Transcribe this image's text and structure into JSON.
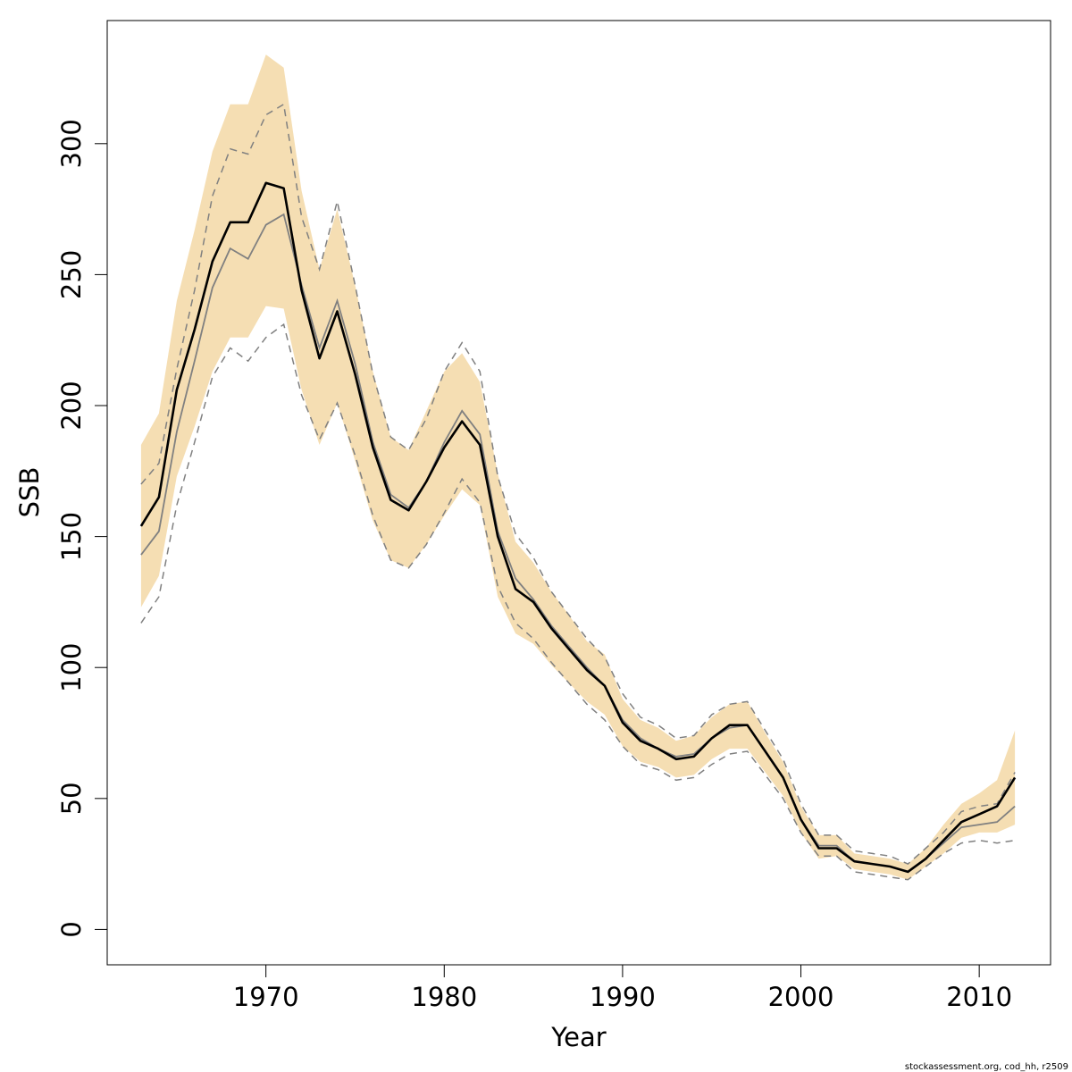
{
  "chart_data": {
    "type": "line",
    "xlabel": "Year",
    "ylabel": "SSB",
    "footer": "stockassessment.org, cod_hh, r2509",
    "xlim": [
      1961.1,
      2014
    ],
    "ylim": [
      -13.5,
      347
    ],
    "x_ticks": [
      1970,
      1980,
      1990,
      2000,
      2010
    ],
    "y_ticks": [
      0,
      50,
      100,
      150,
      200,
      250,
      300
    ],
    "colors": {
      "band": "#f5deb3",
      "estimate": "#000000",
      "reference": "#808080",
      "reference_ci": "#808080"
    },
    "x": [
      1963,
      1964,
      1965,
      1966,
      1967,
      1968,
      1969,
      1970,
      1971,
      1972,
      1973,
      1974,
      1975,
      1976,
      1977,
      1978,
      1979,
      1980,
      1981,
      1982,
      1983,
      1984,
      1985,
      1986,
      1987,
      1988,
      1989,
      1990,
      1991,
      1992,
      1993,
      1994,
      1995,
      1996,
      1997,
      1998,
      1999,
      2000,
      2001,
      2002,
      2003,
      2004,
      2005,
      2006,
      2007,
      2008,
      2009,
      2010,
      2011,
      2012
    ],
    "series": [
      {
        "role": "estimate",
        "values": [
          154,
          165,
          206,
          229,
          255,
          270,
          270,
          285,
          283,
          244,
          218,
          236,
          212,
          184,
          164,
          160,
          171,
          184,
          194,
          185,
          150,
          130,
          125,
          115,
          107,
          99,
          93,
          79,
          72,
          69,
          65,
          66,
          73,
          78,
          78,
          68,
          58,
          42,
          31,
          31,
          26,
          25,
          24,
          22,
          27,
          34,
          41,
          44,
          47,
          58
        ]
      },
      {
        "role": "band_upper",
        "values": [
          185,
          197,
          240,
          267,
          297,
          315,
          315,
          334,
          329,
          282,
          252,
          275,
          246,
          213,
          188,
          183,
          198,
          213,
          220,
          209,
          174,
          148,
          140,
          129,
          120,
          110,
          105,
          88,
          80,
          77,
          72,
          74,
          81,
          86,
          87,
          75,
          64,
          47,
          36,
          36,
          29,
          28,
          27,
          25,
          31,
          40,
          48,
          52,
          57,
          76
        ]
      },
      {
        "role": "band_lower",
        "values": [
          123,
          135,
          173,
          192,
          213,
          226,
          226,
          238,
          237,
          206,
          185,
          201,
          179,
          156,
          141,
          138,
          147,
          158,
          168,
          162,
          127,
          113,
          109,
          101,
          94,
          87,
          82,
          70,
          64,
          62,
          58,
          59,
          65,
          69,
          69,
          60,
          51,
          37,
          27,
          28,
          23,
          22,
          21,
          19,
          24,
          29,
          35,
          37,
          37,
          40
        ]
      },
      {
        "role": "reference",
        "values": [
          143,
          152,
          190,
          217,
          245,
          260,
          256,
          269,
          273,
          246,
          222,
          240,
          216,
          186,
          166,
          161,
          171,
          186,
          198,
          189,
          152,
          134,
          126,
          116,
          108,
          100,
          93,
          80,
          73,
          69,
          66,
          67,
          73,
          77,
          78,
          68,
          58,
          42,
          32,
          32,
          26,
          25,
          24,
          22,
          27,
          33,
          39,
          40,
          41,
          47
        ]
      },
      {
        "role": "reference_upper",
        "values": [
          170,
          178,
          214,
          244,
          280,
          298,
          296,
          311,
          315,
          272,
          252,
          278,
          246,
          212,
          188,
          183,
          195,
          213,
          224,
          213,
          173,
          151,
          142,
          129,
          120,
          111,
          104,
          90,
          81,
          78,
          73,
          74,
          82,
          86,
          87,
          76,
          65,
          48,
          36,
          36,
          30,
          29,
          28,
          25,
          31,
          37,
          45,
          47,
          48,
          60
        ]
      },
      {
        "role": "reference_lower",
        "values": [
          117,
          127,
          162,
          186,
          211,
          222,
          217,
          226,
          231,
          204,
          187,
          201,
          181,
          158,
          141,
          138,
          147,
          159,
          172,
          163,
          131,
          117,
          111,
          102,
          94,
          86,
          80,
          70,
          63,
          61,
          57,
          58,
          63,
          67,
          68,
          59,
          50,
          37,
          28,
          28,
          22,
          21,
          20,
          19,
          24,
          29,
          33,
          34,
          33,
          34
        ]
      }
    ]
  }
}
